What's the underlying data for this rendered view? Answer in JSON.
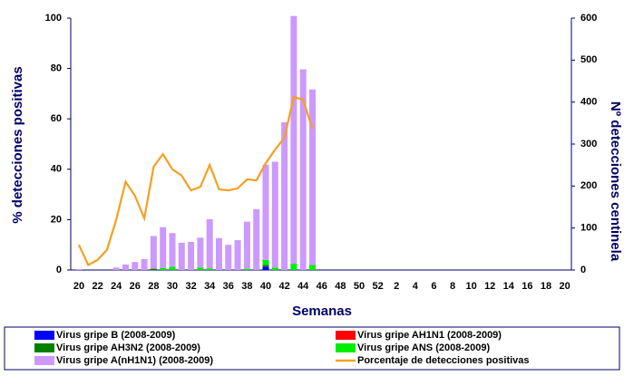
{
  "chart_data": {
    "type": "bar",
    "stacked": true,
    "y_label": "% detecciones positivas",
    "y2_label": "Nº detecciones centinela",
    "x_label": "Semanas",
    "categories": [
      "20",
      null,
      "22",
      null,
      "24",
      null,
      "26",
      null,
      "28",
      null,
      "30",
      null,
      "32",
      null,
      "34",
      null,
      "36",
      null,
      "38",
      null,
      "40",
      null,
      "42",
      null,
      "44",
      null,
      "46",
      null,
      "48",
      null,
      "50",
      null,
      "52",
      null,
      "2",
      null,
      "4",
      null,
      "6",
      null,
      "8",
      null,
      "10",
      null,
      "12",
      null,
      "14",
      null,
      "16",
      null,
      "18",
      null,
      "20"
    ],
    "ylim": [
      0,
      100
    ],
    "yticks": [
      0,
      20,
      40,
      60,
      80,
      100
    ],
    "y2lim": [
      0,
      600
    ],
    "y2ticks": [
      0,
      100,
      200,
      300,
      400,
      500,
      600
    ],
    "series": [
      {
        "name": "Virus gripe B (2008-2009)",
        "color": "#0000ff",
        "axis": "y2",
        "values": [
          null,
          null,
          null,
          null,
          null,
          null,
          null,
          null,
          null,
          null,
          null,
          null,
          null,
          null,
          null,
          null,
          null,
          null,
          null,
          null,
          8,
          null,
          null,
          null,
          null,
          null,
          null,
          null,
          null,
          null,
          null,
          null,
          null,
          null,
          null,
          null,
          null,
          null,
          null,
          null,
          null,
          null,
          null,
          null,
          null,
          null,
          null,
          null,
          null,
          null,
          null,
          null,
          null
        ]
      },
      {
        "name": "Virus gripe AH1N1 (2008-2009)",
        "color": "#ff0000",
        "axis": "y2",
        "values": [
          null,
          null,
          null,
          null,
          null,
          null,
          null,
          null,
          null,
          null,
          null,
          null,
          null,
          null,
          null,
          null,
          null,
          null,
          null,
          null,
          null,
          null,
          null,
          null,
          null,
          null,
          null,
          null,
          null,
          null,
          null,
          null,
          null,
          null,
          null,
          null,
          null,
          null,
          null,
          null,
          null,
          null,
          null,
          null,
          null,
          null,
          null,
          null,
          null,
          null,
          null,
          null,
          null
        ]
      },
      {
        "name": "Virus gripe AH3N2 (2008-2009)",
        "color": "#008000",
        "axis": "y2",
        "values": [
          null,
          null,
          null,
          null,
          null,
          null,
          null,
          null,
          3,
          null,
          null,
          null,
          null,
          null,
          null,
          null,
          null,
          null,
          null,
          null,
          4,
          null,
          null,
          null,
          null,
          null,
          null,
          null,
          null,
          null,
          null,
          null,
          null,
          null,
          null,
          null,
          null,
          null,
          null,
          null,
          null,
          null,
          null,
          null,
          null,
          null,
          null,
          null,
          null,
          null,
          null,
          null,
          null
        ]
      },
      {
        "name": "Virus gripe ANS (2008-2009)",
        "color": "#00ee00",
        "axis": "y2",
        "values": [
          null,
          null,
          null,
          null,
          null,
          null,
          null,
          null,
          null,
          5,
          8,
          null,
          null,
          6,
          4,
          null,
          null,
          null,
          3,
          null,
          12,
          6,
          null,
          15,
          null,
          12,
          null,
          null,
          null,
          null,
          null,
          null,
          null,
          null,
          null,
          null,
          null,
          null,
          null,
          null,
          null,
          null,
          null,
          null,
          null,
          null,
          null,
          null,
          null,
          null,
          null,
          null,
          null
        ]
      },
      {
        "name": "Virus gripe A(nH1N1)  (2008-2009)",
        "color": "#cc99ff",
        "axis": "y2",
        "values": [
          2,
          0,
          0,
          0,
          6,
          13,
          19,
          26,
          78,
          97,
          80,
          65,
          67,
          71,
          117,
          76,
          60,
          71,
          112,
          145,
          227,
          252,
          352,
          590,
          478,
          418,
          null,
          null,
          null,
          null,
          null,
          null,
          null,
          null,
          null,
          null,
          null,
          null,
          null,
          null,
          null,
          null,
          null,
          null,
          null,
          null,
          null,
          null,
          null,
          null,
          null,
          null,
          null
        ]
      },
      {
        "name": "Porcentaje de detecciones positivas",
        "color": "#f5a020",
        "type": "line",
        "values": [
          10,
          2,
          4,
          8,
          20,
          35,
          29.5,
          20.5,
          41,
          46,
          40,
          37.5,
          31.6,
          33,
          41.7,
          32,
          31.6,
          32.4,
          36,
          35.6,
          42.4,
          47.8,
          52.5,
          68.7,
          67.6,
          56,
          null,
          null,
          null,
          null,
          null,
          null,
          null,
          null,
          null,
          null,
          null,
          null,
          null,
          null,
          null,
          null,
          null,
          null,
          null,
          null,
          null,
          null,
          null,
          null,
          null,
          null,
          null
        ]
      }
    ]
  }
}
